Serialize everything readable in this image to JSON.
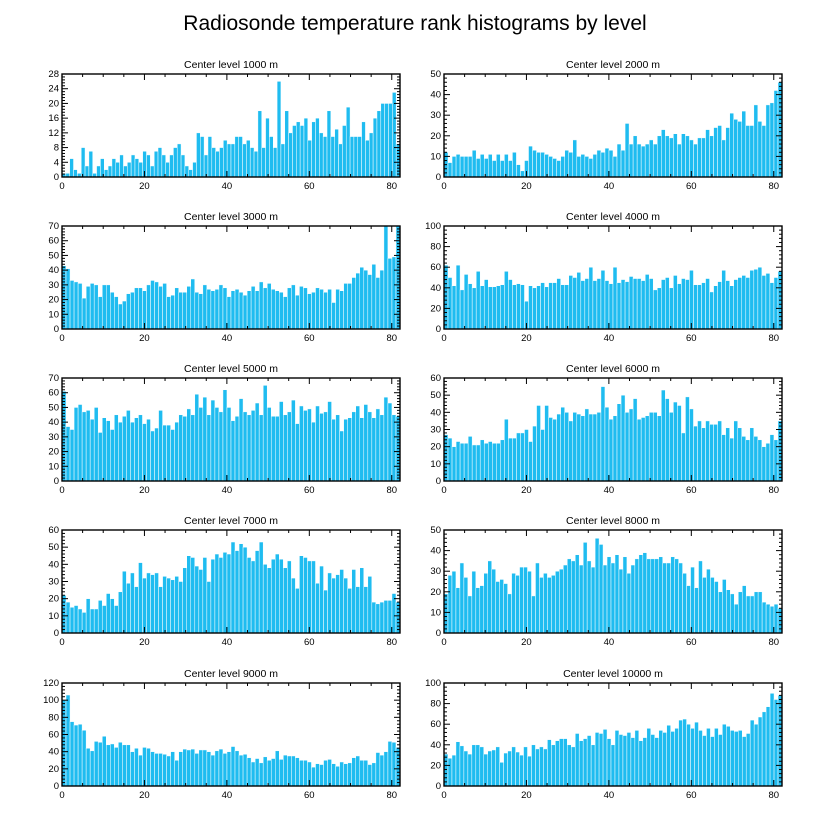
{
  "title": "Radiosonde temperature rank histograms by level",
  "chart_data": [
    {
      "type": "bar",
      "title": "Center level 1000 m",
      "x": {
        "min": 0,
        "max": 82,
        "major": [
          0,
          20,
          40,
          60,
          80
        ],
        "minor_step": 5
      },
      "ylim": [
        0,
        28
      ],
      "yticks": [
        0,
        4,
        8,
        12,
        16,
        20,
        24,
        28
      ],
      "values": [
        1,
        1,
        5,
        2,
        1,
        8,
        3,
        7,
        1,
        3,
        5,
        2,
        3,
        5,
        4,
        6,
        3,
        4,
        6,
        5,
        4,
        7,
        6,
        3,
        7,
        8,
        6,
        4,
        6,
        8,
        9,
        6,
        3,
        2,
        4,
        12,
        11,
        6,
        11,
        8,
        7,
        8,
        10,
        9,
        9,
        11,
        11,
        9,
        10,
        8,
        7,
        18,
        8,
        16,
        11,
        8,
        26,
        9,
        18,
        12,
        14,
        15,
        14,
        16,
        10,
        15,
        16,
        12,
        11,
        18,
        11,
        13,
        9,
        14,
        19,
        11,
        11,
        11,
        15,
        10,
        12,
        16,
        18,
        20,
        20,
        20,
        23,
        9
      ]
    },
    {
      "type": "bar",
      "title": "Center level 2000 m",
      "x": {
        "min": 0,
        "max": 82,
        "major": [
          0,
          20,
          40,
          60,
          80
        ],
        "minor_step": 5
      },
      "ylim": [
        0,
        50
      ],
      "yticks": [
        0,
        10,
        20,
        30,
        40,
        50
      ],
      "values": [
        12,
        7,
        10,
        11,
        10,
        10,
        10,
        13,
        9,
        11,
        9,
        11,
        8,
        11,
        8,
        11,
        8,
        12,
        6,
        3,
        8,
        15,
        13,
        12,
        12,
        11,
        10,
        9,
        8,
        10,
        13,
        12,
        18,
        10,
        11,
        10,
        9,
        11,
        13,
        12,
        14,
        13,
        10,
        16,
        13,
        26,
        16,
        20,
        16,
        15,
        16,
        18,
        16,
        20,
        23,
        20,
        19,
        21,
        16,
        21,
        20,
        18,
        16,
        19,
        19,
        23,
        20,
        24,
        25,
        18,
        24,
        31,
        28,
        27,
        32,
        25,
        25,
        35,
        27,
        25,
        35,
        36,
        42,
        46
      ]
    },
    {
      "type": "bar",
      "title": "Center level 3000 m",
      "x": {
        "min": 0,
        "max": 82,
        "major": [
          0,
          20,
          40,
          60,
          80
        ],
        "minor_step": 5
      },
      "ylim": [
        0,
        70
      ],
      "yticks": [
        0,
        10,
        20,
        30,
        40,
        50,
        60,
        70
      ],
      "values": [
        43,
        41,
        33,
        32,
        31,
        21,
        29,
        31,
        30,
        22,
        30,
        30,
        25,
        22,
        17,
        19,
        24,
        25,
        28,
        28,
        26,
        30,
        33,
        32,
        29,
        31,
        22,
        23,
        28,
        25,
        25,
        29,
        34,
        25,
        24,
        30,
        27,
        26,
        27,
        30,
        28,
        22,
        26,
        27,
        25,
        23,
        26,
        29,
        26,
        32,
        28,
        31,
        27,
        26,
        25,
        22,
        28,
        30,
        23,
        29,
        28,
        24,
        25,
        28,
        27,
        25,
        27,
        18,
        27,
        26,
        31,
        31,
        35,
        38,
        42,
        40,
        37,
        44,
        35,
        40,
        70,
        48,
        49,
        70
      ]
    },
    {
      "type": "bar",
      "title": "Center level 4000 m",
      "x": {
        "min": 0,
        "max": 82,
        "major": [
          0,
          20,
          40,
          60,
          80
        ],
        "minor_step": 5
      },
      "ylim": [
        0,
        100
      ],
      "yticks": [
        0,
        20,
        40,
        60,
        80,
        100
      ],
      "values": [
        62,
        50,
        42,
        62,
        38,
        53,
        44,
        40,
        56,
        42,
        48,
        41,
        41,
        42,
        43,
        56,
        48,
        43,
        44,
        43,
        27,
        42,
        40,
        42,
        45,
        41,
        45,
        45,
        49,
        43,
        43,
        52,
        50,
        55,
        47,
        49,
        60,
        47,
        49,
        57,
        47,
        44,
        60,
        45,
        48,
        46,
        51,
        49,
        49,
        47,
        53,
        49,
        38,
        40,
        48,
        50,
        40,
        52,
        44,
        49,
        48,
        57,
        43,
        43,
        45,
        49,
        36,
        42,
        46,
        57,
        47,
        42,
        48,
        50,
        52,
        50,
        57,
        58,
        60,
        52,
        54,
        45,
        50,
        56
      ]
    },
    {
      "type": "bar",
      "title": "Center level 5000 m",
      "x": {
        "min": 0,
        "max": 82,
        "major": [
          0,
          20,
          40,
          60,
          80
        ],
        "minor_step": 5
      },
      "ylim": [
        0,
        70
      ],
      "yticks": [
        0,
        10,
        20,
        30,
        40,
        50,
        60,
        70
      ],
      "values": [
        61,
        37,
        35,
        50,
        52,
        47,
        48,
        42,
        50,
        33,
        43,
        41,
        35,
        45,
        40,
        44,
        48,
        40,
        43,
        45,
        39,
        42,
        34,
        36,
        48,
        38,
        38,
        35,
        40,
        45,
        44,
        49,
        45,
        59,
        50,
        57,
        45,
        55,
        50,
        47,
        62,
        50,
        41,
        44,
        56,
        47,
        45,
        48,
        53,
        45,
        65,
        50,
        44,
        44,
        54,
        45,
        47,
        55,
        39,
        51,
        48,
        49,
        40,
        51,
        46,
        47,
        54,
        42,
        45,
        34,
        42,
        43,
        47,
        51,
        43,
        52,
        47,
        43,
        49,
        45,
        57,
        53,
        45,
        44
      ]
    },
    {
      "type": "bar",
      "title": "Center level 6000 m",
      "x": {
        "min": 0,
        "max": 82,
        "major": [
          0,
          20,
          40,
          60,
          80
        ],
        "minor_step": 5
      },
      "ylim": [
        0,
        60
      ],
      "yticks": [
        0,
        10,
        20,
        30,
        40,
        50,
        60
      ],
      "values": [
        27,
        25,
        20,
        23,
        22,
        22,
        26,
        21,
        21,
        24,
        22,
        23,
        22,
        22,
        24,
        36,
        25,
        25,
        28,
        28,
        30,
        23,
        32,
        44,
        30,
        44,
        37,
        36,
        39,
        43,
        40,
        35,
        40,
        39,
        38,
        42,
        39,
        39,
        40,
        55,
        43,
        36,
        38,
        45,
        50,
        40,
        42,
        48,
        36,
        37,
        38,
        40,
        40,
        38,
        53,
        48,
        40,
        46,
        44,
        28,
        49,
        42,
        32,
        35,
        31,
        35,
        33,
        33,
        35,
        27,
        31,
        25,
        35,
        31,
        26,
        24,
        31,
        26,
        24,
        20,
        22,
        27,
        24,
        35
      ]
    },
    {
      "type": "bar",
      "title": "Center level 7000 m",
      "x": {
        "min": 0,
        "max": 82,
        "major": [
          0,
          20,
          40,
          60,
          80
        ],
        "minor_step": 5
      },
      "ylim": [
        0,
        60
      ],
      "yticks": [
        0,
        10,
        20,
        30,
        40,
        50,
        60
      ],
      "values": [
        22,
        18,
        15,
        16,
        14,
        12,
        20,
        14,
        14,
        19,
        16,
        23,
        20,
        16,
        24,
        36,
        29,
        35,
        27,
        41,
        32,
        35,
        34,
        35,
        27,
        33,
        32,
        31,
        33,
        30,
        38,
        45,
        44,
        39,
        37,
        44,
        30,
        43,
        46,
        44,
        47,
        46,
        53,
        48,
        52,
        50,
        44,
        42,
        48,
        53,
        40,
        38,
        43,
        46,
        43,
        38,
        42,
        32,
        26,
        45,
        44,
        42,
        42,
        29,
        39,
        25,
        35,
        32,
        34,
        37,
        32,
        26,
        37,
        27,
        38,
        27,
        33,
        18,
        17,
        18,
        19,
        19,
        23,
        18
      ]
    },
    {
      "type": "bar",
      "title": "Center level 8000 m",
      "x": {
        "min": 0,
        "max": 82,
        "major": [
          0,
          20,
          40,
          60,
          80
        ],
        "minor_step": 5
      },
      "ylim": [
        0,
        50
      ],
      "yticks": [
        0,
        10,
        20,
        30,
        40,
        50
      ],
      "values": [
        19,
        28,
        30,
        22,
        34,
        27,
        18,
        30,
        22,
        23,
        29,
        35,
        31,
        25,
        26,
        24,
        19,
        29,
        28,
        32,
        32,
        30,
        18,
        34,
        27,
        29,
        27,
        28,
        30,
        31,
        33,
        36,
        35,
        38,
        33,
        44,
        35,
        32,
        46,
        43,
        33,
        37,
        34,
        38,
        31,
        37,
        29,
        33,
        36,
        38,
        39,
        36,
        36,
        36,
        37,
        34,
        34,
        37,
        36,
        34,
        29,
        23,
        32,
        22,
        35,
        27,
        31,
        27,
        25,
        20,
        26,
        21,
        19,
        14,
        20,
        23,
        18,
        18,
        20,
        20,
        15,
        14,
        13,
        14,
        12
      ]
    },
    {
      "type": "bar",
      "title": "Center level 9000 m",
      "x": {
        "min": 0,
        "max": 82,
        "major": [
          0,
          20,
          40,
          60,
          80
        ],
        "minor_step": 5
      },
      "ylim": [
        0,
        120
      ],
      "yticks": [
        0,
        20,
        40,
        60,
        80,
        100,
        120
      ],
      "values": [
        100,
        106,
        75,
        71,
        72,
        65,
        44,
        41,
        52,
        51,
        58,
        48,
        49,
        45,
        51,
        48,
        48,
        40,
        44,
        36,
        45,
        44,
        40,
        38,
        38,
        37,
        35,
        40,
        30,
        40,
        43,
        42,
        43,
        38,
        42,
        42,
        40,
        36,
        41,
        43,
        38,
        40,
        46,
        41,
        36,
        37,
        33,
        28,
        32,
        27,
        34,
        30,
        32,
        41,
        31,
        36,
        35,
        35,
        33,
        30,
        30,
        28,
        22,
        26,
        25,
        30,
        31,
        26,
        23,
        28,
        26,
        27,
        33,
        35,
        30,
        30,
        25,
        27,
        39,
        36,
        40,
        52,
        51,
        45
      ]
    },
    {
      "type": "bar",
      "title": "Center level 10000 m",
      "x": {
        "min": 0,
        "max": 82,
        "major": [
          0,
          20,
          40,
          60,
          80
        ],
        "minor_step": 5
      },
      "ylim": [
        0,
        100
      ],
      "yticks": [
        0,
        20,
        40,
        60,
        80,
        100
      ],
      "values": [
        31,
        27,
        30,
        43,
        39,
        34,
        31,
        40,
        40,
        38,
        31,
        34,
        35,
        38,
        23,
        32,
        34,
        38,
        33,
        30,
        38,
        29,
        40,
        36,
        38,
        36,
        45,
        40,
        44,
        46,
        46,
        40,
        38,
        51,
        44,
        46,
        49,
        40,
        52,
        51,
        55,
        46,
        40,
        54,
        50,
        49,
        52,
        47,
        54,
        44,
        47,
        56,
        50,
        47,
        54,
        52,
        59,
        53,
        56,
        64,
        65,
        60,
        56,
        62,
        54,
        49,
        56,
        48,
        56,
        50,
        60,
        58,
        54,
        53,
        54,
        48,
        51,
        64,
        60,
        67,
        72,
        77,
        90,
        84,
        88
      ]
    }
  ]
}
